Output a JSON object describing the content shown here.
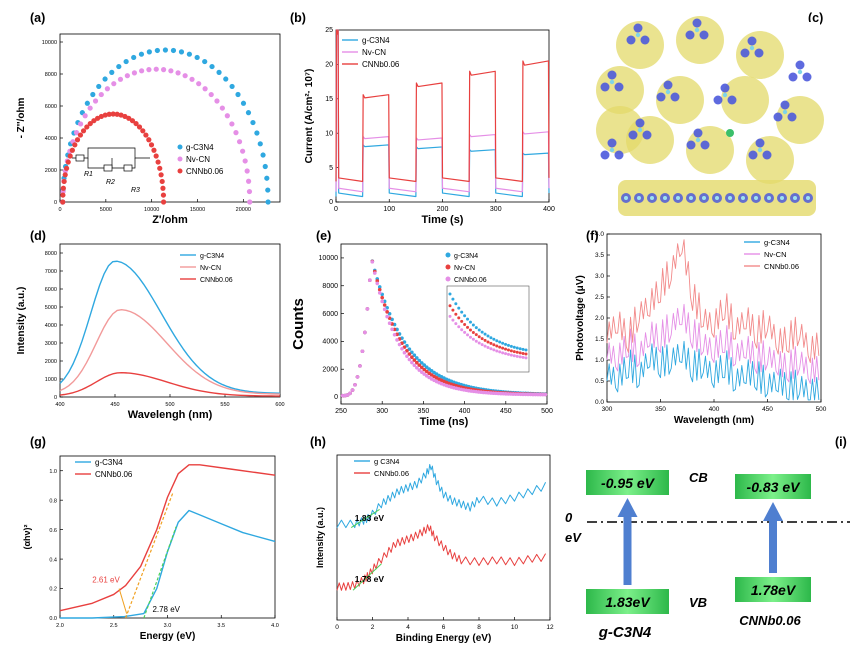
{
  "colors": {
    "blue": "#2FA8E0",
    "pink": "#E58FE6",
    "red": "#E8403F",
    "green": "#4CD15A",
    "arrow": "#4F7FD0",
    "orange": "#F0A020"
  },
  "chart_data": [
    {
      "id": "a",
      "panel_label": "(a)",
      "type": "scatter",
      "xlabel": "Z'/ohm",
      "ylabel": "- Z''/ohm",
      "xlim": [
        0,
        24000
      ],
      "ylim": [
        0,
        10500
      ],
      "xticks": [
        0,
        5000,
        10000,
        15000,
        20000
      ],
      "xtick_labels": [
        "0",
        "5000",
        "10000",
        "15000",
        "20000"
      ],
      "yticks": [
        0,
        2000,
        4000,
        6000,
        8000,
        10000
      ],
      "ytick_labels": [
        "0",
        "2000",
        "4000",
        "6000",
        "8000",
        "10000"
      ],
      "series": [
        {
          "name": "g-C3N4",
          "color": "#2FA8E0",
          "arc_center": 11500,
          "arc_radius": 11200,
          "arc_height": 9500
        },
        {
          "name": "Nv-CN",
          "color": "#E58FE6",
          "arc_center": 10500,
          "arc_radius": 10200,
          "arc_height": 8300
        },
        {
          "name": "CNNb0.06",
          "color": "#E8403F",
          "arc_center": 5800,
          "arc_radius": 5500,
          "arc_height": 5500
        }
      ],
      "legend": [
        "g-C3N4",
        "Nv-CN",
        "CNNb0.06"
      ],
      "inset_labels": [
        "R1",
        "R2",
        "R3"
      ]
    },
    {
      "id": "b",
      "panel_label": "(b)",
      "type": "line",
      "xlabel": "Time (s)",
      "ylabel": "Current (A/cm²· 10⁷)",
      "xlim": [
        0,
        400
      ],
      "ylim": [
        0,
        25
      ],
      "xticks": [
        0,
        100,
        200,
        300,
        400
      ],
      "xtick_labels": [
        "0",
        "100",
        "200",
        "300",
        "400"
      ],
      "yticks": [
        0,
        5,
        10,
        15,
        20,
        25
      ],
      "ytick_labels": [
        "0",
        "5",
        "10",
        "15",
        "20",
        "25"
      ],
      "on_intervals": [
        [
          0,
          5
        ],
        [
          50,
          100
        ],
        [
          150,
          200
        ],
        [
          250,
          300
        ],
        [
          350,
          400
        ]
      ],
      "series": [
        {
          "name": "g-C3N4",
          "color": "#2FA8E0",
          "dark": 0.8,
          "on": [
            25,
            8.3,
            8.0,
            7.6,
            7.1
          ]
        },
        {
          "name": "Nv-CN",
          "color": "#E58FE6",
          "dark": 1.5,
          "on": [
            25,
            9.5,
            9.3,
            9.8,
            10.2
          ]
        },
        {
          "name": "CNNb0.06",
          "color": "#E8403F",
          "dark": 3.0,
          "on": [
            25,
            15.6,
            17.3,
            19.0,
            20.5
          ]
        }
      ],
      "legend": [
        "g-C3N4",
        "Nv-CN",
        "CNNb0.06"
      ]
    },
    {
      "id": "d",
      "panel_label": "(d)",
      "type": "line",
      "xlabel": "Wavelengh (nm)",
      "ylabel": "Intensity (a.u.)",
      "xlim": [
        400,
        600
      ],
      "ylim": [
        0,
        8500
      ],
      "xticks": [
        400,
        450,
        500,
        550,
        600
      ],
      "xtick_labels": [
        "400",
        "450",
        "500",
        "550",
        "600"
      ],
      "yticks": [
        0,
        1000,
        2000,
        3000,
        4000,
        5000,
        6000,
        7000,
        8000
      ],
      "ytick_labels": [
        "0",
        "1000",
        "2000",
        "3000",
        "4000",
        "5000",
        "6000",
        "7000",
        "8000"
      ],
      "series": [
        {
          "name": "g-C3N4",
          "color": "#2FA8E0",
          "peak_x": 450,
          "peak": 7550,
          "base": 200
        },
        {
          "name": "Nv-CN",
          "color": "#F29A9A",
          "peak_x": 455,
          "peak": 4850,
          "base": 150
        },
        {
          "name": "CNNb0.06",
          "color": "#E8403F",
          "peak_x": 455,
          "peak": 1350,
          "base": 50
        }
      ],
      "legend": [
        "g-C3N4",
        "Nv-CN",
        "CNNb0.06"
      ]
    },
    {
      "id": "e",
      "panel_label": "(e)",
      "type": "scatter",
      "xlabel": "Time (ns)",
      "ylabel": "Counts",
      "xlim": [
        250,
        500
      ],
      "ylim": [
        -500,
        11000
      ],
      "xticks": [
        250,
        300,
        350,
        400,
        450,
        500
      ],
      "xtick_labels": [
        "250",
        "300",
        "350",
        "400",
        "450",
        "500"
      ],
      "yticks": [
        0,
        2000,
        4000,
        6000,
        8000,
        10000
      ],
      "ytick_labels": [
        "0",
        "2000",
        "4000",
        "6000",
        "8000",
        "10000"
      ],
      "peak_x": 287,
      "peak": 10000,
      "series": [
        {
          "name": "g-C3N4",
          "color": "#2FA8E0",
          "tau": 42
        },
        {
          "name": "Nv-CN",
          "color": "#E8403F",
          "tau": 38
        },
        {
          "name": "CNNb0.06",
          "color": "#E58FE6",
          "tau": 34
        }
      ],
      "legend": [
        "g-C3N4",
        "Nv-CN",
        "CNNb0.06"
      ]
    },
    {
      "id": "f",
      "panel_label": "(f)",
      "type": "line",
      "xlabel": "Wavelength (nm)",
      "ylabel": "Photovoltage (μV)",
      "xlim": [
        300,
        500
      ],
      "ylim": [
        0,
        4.0
      ],
      "xticks": [
        300,
        350,
        400,
        450,
        500
      ],
      "xtick_labels": [
        "300",
        "350",
        "400",
        "450",
        "500"
      ],
      "yticks": [
        0,
        0.5,
        1.0,
        1.5,
        2.0,
        2.5,
        3.0,
        3.5,
        4.0
      ],
      "ytick_labels": [
        "0.0",
        "0.5",
        "1.0",
        "1.5",
        "2.0",
        "2.5",
        "3.0",
        "3.5",
        "4.0"
      ],
      "series": [
        {
          "name": "g-C3N4",
          "color": "#2FA8E0",
          "x": [
            300,
            310,
            320,
            330,
            340,
            350,
            360,
            370,
            380,
            390,
            400,
            410,
            420,
            430,
            440,
            450,
            460,
            470,
            480,
            490,
            500
          ],
          "values": [
            0.7,
            0.5,
            0.9,
            0.6,
            1.1,
            0.9,
            1.0,
            1.2,
            0.8,
            0.9,
            0.6,
            0.9,
            0.5,
            0.7,
            0.6,
            0.4,
            0.5,
            0.3,
            0.4,
            0.2,
            0.3
          ]
        },
        {
          "name": "Nv-CN",
          "color": "#E58FE6",
          "x": [
            300,
            310,
            320,
            330,
            340,
            350,
            360,
            370,
            380,
            390,
            400,
            410,
            420,
            430,
            440,
            450,
            460,
            470,
            480,
            490,
            500
          ],
          "values": [
            1.2,
            1.0,
            1.4,
            1.1,
            1.6,
            1.5,
            1.8,
            2.1,
            1.6,
            1.4,
            1.2,
            1.5,
            1.1,
            1.3,
            1.0,
            1.1,
            0.9,
            0.8,
            1.0,
            0.7,
            0.8
          ]
        },
        {
          "name": "CNNb0.06",
          "color": "#F28A8A",
          "x": [
            300,
            310,
            320,
            330,
            340,
            350,
            360,
            370,
            380,
            390,
            400,
            410,
            420,
            430,
            440,
            450,
            460,
            470,
            480,
            490,
            500
          ],
          "values": [
            1.6,
            1.9,
            1.5,
            2.1,
            2.3,
            2.7,
            3.1,
            3.8,
            2.5,
            2.0,
            1.8,
            2.3,
            1.7,
            2.0,
            1.6,
            1.9,
            1.4,
            1.5,
            1.7,
            1.2,
            1.4
          ]
        }
      ],
      "legend": [
        "g-C3N4",
        "Nv-CN",
        "CNNb0.06"
      ]
    },
    {
      "id": "g",
      "panel_label": "(g)",
      "type": "line",
      "xlabel": "Energy (eV)",
      "ylabel": "(αhν)²",
      "xlim": [
        2.0,
        4.0
      ],
      "ylim": [
        0,
        1.1
      ],
      "xticks": [
        2.0,
        2.5,
        3.0,
        3.5,
        4.0
      ],
      "xtick_labels": [
        "2.0",
        "2.5",
        "3.0",
        "3.5",
        "4.0"
      ],
      "yticks": [
        0,
        0.2,
        0.4,
        0.6,
        0.8,
        1.0
      ],
      "ytick_labels": [
        "0.0",
        "0.2",
        "0.4",
        "0.6",
        "0.8",
        "1.0"
      ],
      "series": [
        {
          "name": "g-C3N4",
          "color": "#2FA8E0",
          "x": [
            2.0,
            2.3,
            2.6,
            2.78,
            2.9,
            3.0,
            3.1,
            3.2,
            3.3,
            3.5,
            3.7,
            4.0
          ],
          "values": [
            0.0,
            0.0,
            0.01,
            0.03,
            0.2,
            0.45,
            0.65,
            0.73,
            0.7,
            0.64,
            0.58,
            0.52
          ]
        },
        {
          "name": "CNNb0.06",
          "color": "#E8403F",
          "x": [
            2.0,
            2.3,
            2.5,
            2.61,
            2.75,
            2.9,
            3.0,
            3.1,
            3.2,
            3.3,
            3.6,
            4.0
          ],
          "values": [
            0.05,
            0.1,
            0.16,
            0.22,
            0.35,
            0.6,
            0.82,
            0.98,
            1.04,
            1.04,
            1.01,
            0.97
          ]
        }
      ],
      "annotations": [
        {
          "text": "2.61 eV",
          "x": 2.61,
          "color": "#E8403F"
        },
        {
          "text": "2.78 eV",
          "x": 2.78,
          "color": "#000000"
        }
      ],
      "legend": [
        "g-C3N4",
        "CNNb0.06"
      ]
    },
    {
      "id": "h",
      "panel_label": "(h)",
      "type": "line",
      "xlabel": "Binding Energy (eV)",
      "ylabel": "Intensity (a.u.)",
      "xlim": [
        0,
        12
      ],
      "ylim": [
        0,
        1
      ],
      "xticks": [
        0,
        2,
        4,
        6,
        8,
        10,
        12
      ],
      "xtick_labels": [
        "0",
        "2",
        "4",
        "6",
        "8",
        "10",
        "12"
      ],
      "series": [
        {
          "name": "g C3N4",
          "color": "#2FA8E0",
          "x": [
            0,
            1,
            1.5,
            1.83,
            2.5,
            3,
            3.5,
            4,
            4.5,
            5,
            5.3,
            5.6,
            6,
            6.5,
            7,
            7.5,
            8,
            9,
            10,
            11,
            12
          ],
          "values": [
            0.58,
            0.58,
            0.6,
            0.62,
            0.7,
            0.74,
            0.78,
            0.8,
            0.82,
            0.88,
            0.93,
            0.84,
            0.76,
            0.72,
            0.7,
            0.68,
            0.73,
            0.71,
            0.74,
            0.78,
            0.82
          ]
        },
        {
          "name": "CNNb0.06",
          "color": "#E8403F",
          "x": [
            0,
            0.5,
            1,
            1.5,
            1.78,
            2.2,
            2.8,
            3.3,
            3.8,
            4.3,
            4.8,
            5.2,
            5.5,
            6,
            6.5,
            7,
            8,
            9,
            10,
            11,
            12
          ],
          "values": [
            0.2,
            0.2,
            0.21,
            0.24,
            0.27,
            0.33,
            0.4,
            0.46,
            0.48,
            0.5,
            0.53,
            0.56,
            0.5,
            0.44,
            0.39,
            0.36,
            0.35,
            0.36,
            0.35,
            0.37,
            0.38
          ]
        }
      ],
      "annotations": [
        {
          "text": "1.83 eV"
        },
        {
          "text": "1.78 eV"
        }
      ],
      "legend": [
        "g C3N4",
        "CNNb0.06"
      ]
    },
    {
      "id": "i",
      "panel_label": "(i)",
      "type": "diagram",
      "levels": [
        {
          "material": "g-C3N4",
          "cb": "-0.95 eV",
          "vb": "1.83eV"
        },
        {
          "material": "CNNb0.06",
          "cb": "-0.83 eV",
          "vb": "1.78eV"
        }
      ],
      "labels": {
        "cb": "CB",
        "vb": "VB",
        "zero": "0",
        "zero_unit": "eV"
      }
    }
  ],
  "panel_c": {
    "label": "(c)"
  }
}
